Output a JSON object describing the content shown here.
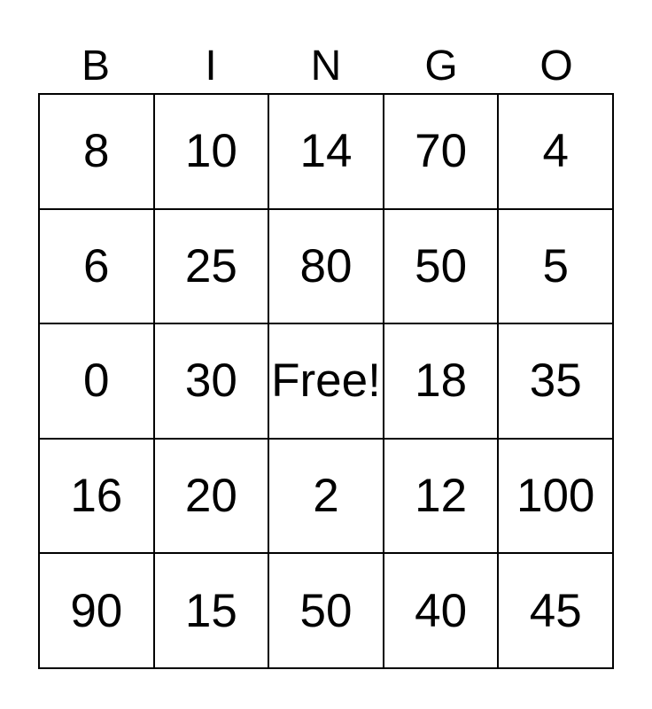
{
  "card": {
    "header_letters": [
      "B",
      "I",
      "N",
      "G",
      "O"
    ],
    "free_label": "Free!",
    "rows": [
      [
        "8",
        "10",
        "14",
        "70",
        "4"
      ],
      [
        "6",
        "25",
        "80",
        "50",
        "5"
      ],
      [
        "0",
        "30",
        "Free!",
        "18",
        "35"
      ],
      [
        "16",
        "20",
        "2",
        "12",
        "100"
      ],
      [
        "90",
        "15",
        "50",
        "40",
        "45"
      ]
    ],
    "colors": {
      "text": "#000000",
      "border": "#000000",
      "background": "#ffffff"
    }
  }
}
